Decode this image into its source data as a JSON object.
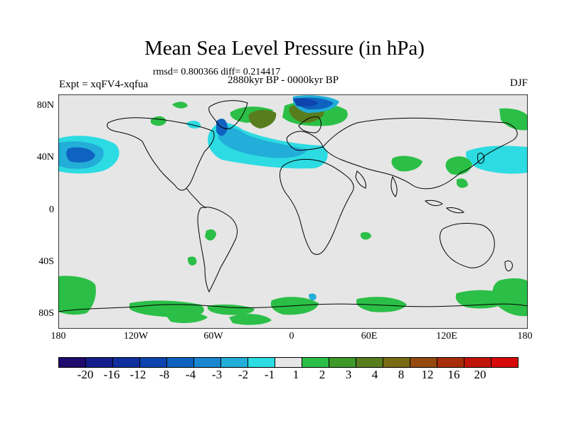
{
  "title": "Mean Sea Level Pressure (in hPa)",
  "stats_line": "rmsd= 0.800366 diff= 0.214417",
  "period_line": "2880kyr BP - 0000kyr BP",
  "experiment": "Expt = xqFV4-xqfua",
  "season": "DJF",
  "lat_labels": [
    "80N",
    "40N",
    "0",
    "40S",
    "80S"
  ],
  "lon_labels": [
    "180",
    "120W",
    "60W",
    "0",
    "60E",
    "120E",
    "180"
  ],
  "colorbar": {
    "labels": [
      "-20",
      "-16",
      "-12",
      "-8",
      "-4",
      "-3",
      "-2",
      "-1",
      "1",
      "2",
      "3",
      "4",
      "8",
      "12",
      "16",
      "20"
    ],
    "colors": [
      "#1f0a6e",
      "#141f8c",
      "#0f2f9e",
      "#0d44ad",
      "#0f62c0",
      "#1a86cf",
      "#22aed8",
      "#2ddbe2",
      "#e6e6e6",
      "#2bbf47",
      "#3d9a2a",
      "#577d1d",
      "#7a6a13",
      "#944a0e",
      "#a82e0a",
      "#c0140a",
      "#d70a0a"
    ]
  },
  "colors": {
    "land_ocean_neutral": "#e6e6e6",
    "coast": "#000000",
    "anomaly_neg_light": "#2ddbe2",
    "anomaly_neg_mid": "#22aed8",
    "anomaly_neg_strong": "#0f62c0",
    "anomaly_pos": "#2bbf47",
    "anomaly_pos_dark": "#577d1d"
  }
}
